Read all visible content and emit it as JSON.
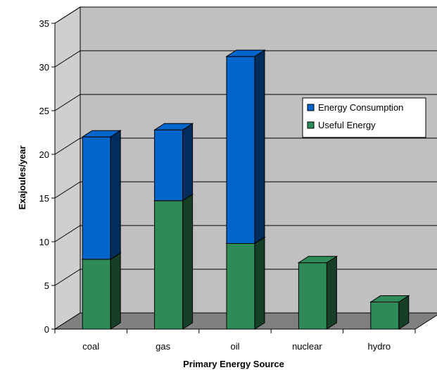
{
  "chart_data": {
    "type": "bar",
    "stacked": true,
    "three_d": true,
    "title": "",
    "xlabel": "Primary Energy Source",
    "ylabel": "Exajoules/year",
    "categories": [
      "coal",
      "gas",
      "oil",
      "nuclear",
      "hydro"
    ],
    "series": [
      {
        "name": "Useful Energy",
        "values": [
          8,
          14.7,
          9.8,
          7.6,
          3.1
        ],
        "color": "#2E8B57"
      },
      {
        "name": "Energy Consumption",
        "values": [
          14,
          8.1,
          21.4,
          0,
          0
        ],
        "color": "#0066CC"
      }
    ],
    "ylim": [
      0,
      35
    ],
    "yticks": [
      0,
      5,
      10,
      15,
      20,
      25,
      30,
      35
    ],
    "grid": true,
    "legend_position": "right",
    "legend_order": [
      "Energy Consumption",
      "Useful Energy"
    ],
    "colors": {
      "back_wall": "#c0c0c0",
      "side_wall": "#cfcfcf",
      "floor": "#808080"
    }
  }
}
